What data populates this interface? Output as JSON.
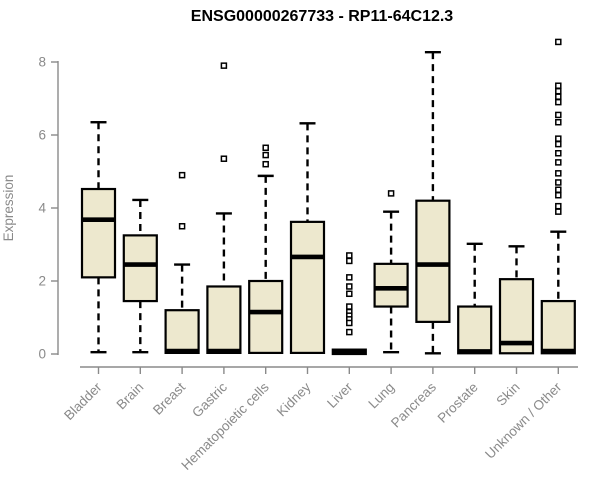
{
  "chart_data": {
    "type": "boxplot",
    "title": "ENSG00000267733 - RP11-64C12.3",
    "ylabel": "Expression",
    "ylim": [
      0,
      8.6
    ],
    "yticks": [
      0,
      2,
      4,
      6,
      8
    ],
    "grid": false,
    "colors": {
      "box_fill": "#EDE8CE",
      "box_border": "#000000",
      "median": "#000000",
      "axis": "#8A8A8A",
      "label_text": "#8A8A8A",
      "title_text": "#000000",
      "background": "#FFFFFF"
    },
    "categories": [
      "Bladder",
      "Brain",
      "Breast",
      "Gastric",
      "Hematopoietic cells",
      "Kidney",
      "Liver",
      "Lung",
      "Pancreas",
      "Prostate",
      "Skin",
      "Unknown / Other"
    ],
    "boxes": [
      {
        "category": "Bladder",
        "whisker_low": 0.05,
        "q1": 2.1,
        "median": 3.68,
        "q3": 4.52,
        "whisker_high": 6.35,
        "outliers": []
      },
      {
        "category": "Brain",
        "whisker_low": 0.05,
        "q1": 1.45,
        "median": 2.45,
        "q3": 3.25,
        "whisker_high": 4.22,
        "outliers": []
      },
      {
        "category": "Breast",
        "whisker_low": 0.03,
        "q1": 0.03,
        "median": 0.08,
        "q3": 1.2,
        "whisker_high": 2.45,
        "outliers": [
          4.9,
          3.5
        ]
      },
      {
        "category": "Gastric",
        "whisker_low": 0.03,
        "q1": 0.03,
        "median": 0.08,
        "q3": 1.85,
        "whisker_high": 3.85,
        "outliers": [
          7.9,
          5.35
        ]
      },
      {
        "category": "Hematopoietic cells",
        "whisker_low": 0.03,
        "q1": 0.03,
        "median": 1.15,
        "q3": 2.0,
        "whisker_high": 4.88,
        "outliers": [
          5.65,
          5.45,
          5.2
        ]
      },
      {
        "category": "Kidney",
        "whisker_low": 0.03,
        "q1": 0.03,
        "median": 2.66,
        "q3": 3.62,
        "whisker_high": 6.32,
        "outliers": []
      },
      {
        "category": "Liver",
        "whisker_low": 0.0,
        "q1": 0.0,
        "median": 0.06,
        "q3": 0.12,
        "whisker_high": 0.12,
        "outliers": [
          2.7,
          2.55,
          2.1,
          1.85,
          1.65,
          1.3,
          1.15,
          1.05,
          0.95,
          0.85,
          0.6
        ]
      },
      {
        "category": "Lung",
        "whisker_low": 0.05,
        "q1": 1.3,
        "median": 1.8,
        "q3": 2.47,
        "whisker_high": 3.9,
        "outliers": [
          4.4
        ]
      },
      {
        "category": "Pancreas",
        "whisker_low": 0.02,
        "q1": 0.88,
        "median": 2.45,
        "q3": 4.2,
        "whisker_high": 8.27,
        "outliers": []
      },
      {
        "category": "Prostate",
        "whisker_low": 0.02,
        "q1": 0.02,
        "median": 0.07,
        "q3": 1.3,
        "whisker_high": 3.02,
        "outliers": []
      },
      {
        "category": "Skin",
        "whisker_low": 0.02,
        "q1": 0.02,
        "median": 0.3,
        "q3": 2.05,
        "whisker_high": 2.95,
        "outliers": []
      },
      {
        "category": "Unknown / Other",
        "whisker_low": 0.02,
        "q1": 0.02,
        "median": 0.08,
        "q3": 1.45,
        "whisker_high": 3.35,
        "outliers": [
          8.55,
          7.35,
          7.2,
          7.05,
          6.9,
          6.55,
          6.35,
          5.9,
          5.75,
          5.5,
          5.25,
          4.95,
          4.7,
          4.5,
          4.35,
          4.05,
          3.9
        ]
      }
    ]
  }
}
